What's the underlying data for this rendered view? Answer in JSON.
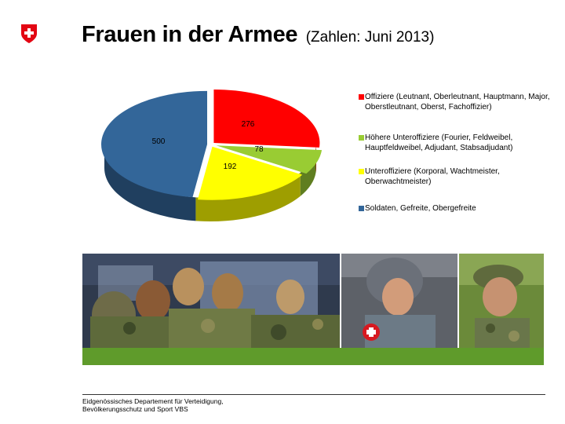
{
  "header": {
    "title_main": "Frauen in der Armee",
    "title_sub": "(Zahlen: Juni 2013)"
  },
  "chart_data": {
    "type": "pie",
    "categories": [
      "Offiziere (Leutnant, Oberleutnant, Hauptmann, Major, Oberstleutnant, Oberst, Fachoffizier)",
      "Höhere Unteroffiziere (Fourier, Feldweibel, Hauptfeldweibel, Adjudant, Stabsadjudant)",
      "Unteroffiziere (Korporal, Wachtmeister, Oberwachtmeister)",
      "Soldaten, Gefreite, Obergefreite"
    ],
    "values": [
      276,
      78,
      192,
      500
    ],
    "colors": [
      "#ff0000",
      "#99cc33",
      "#ffff00",
      "#336699"
    ],
    "legend_position": "right",
    "style": "3d"
  },
  "footer": {
    "line1": "Eidgenössisches Departement für Verteidigung,",
    "line2": "Bevölkerungsschutz und Sport VBS"
  },
  "icons": {
    "logo": "swiss-cross-icon"
  }
}
